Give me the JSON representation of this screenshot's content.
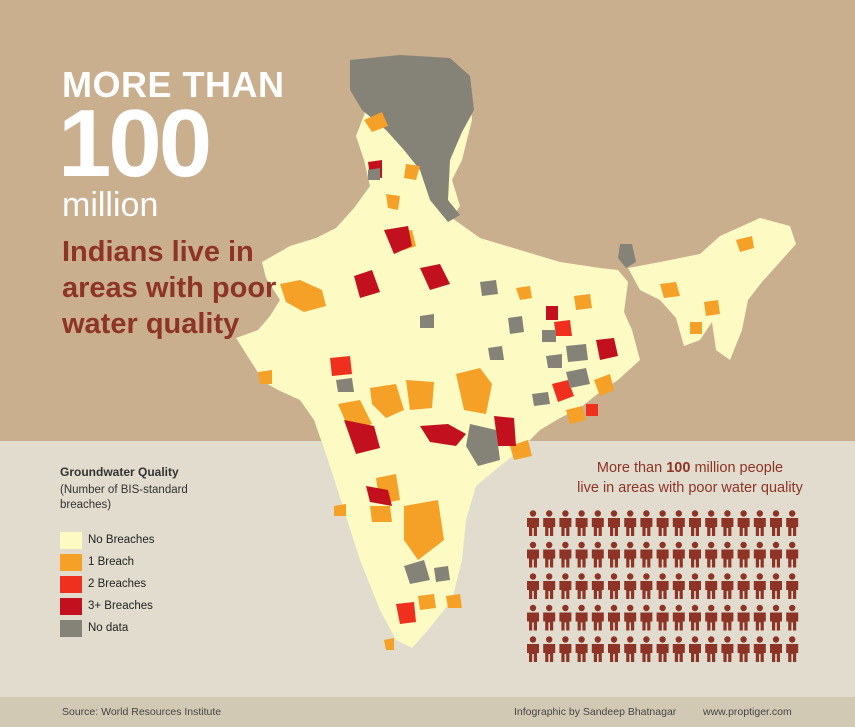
{
  "headline": {
    "prefix": "MORE THAN",
    "number": "100",
    "unit": "million",
    "subtitle": "Indians live in areas with poor water quality"
  },
  "legend": {
    "title": "Groundwater Quality",
    "subtitle": "(Number of BIS-standard breaches)",
    "items": [
      {
        "label": "No Breaches",
        "color": "#fdfac4"
      },
      {
        "label": "1 Breach",
        "color": "#f5a026"
      },
      {
        "label": "2 Breaches",
        "color": "#f0301e"
      },
      {
        "label": "3+ Breaches",
        "color": "#c2101e"
      },
      {
        "label": "No data",
        "color": "#858377"
      }
    ]
  },
  "stat": {
    "line1_prefix": "More than",
    "line1_number": "100",
    "line1_suffix": "million people",
    "line2": "live in areas with poor water quality"
  },
  "people_grid": {
    "rows": 5,
    "cols": 17,
    "color": "#8e3426"
  },
  "footer": {
    "source": "Source: World Resources Institute",
    "credit": "Infographic by Sandeep Bhatnagar",
    "website": "www.proptiger.com"
  },
  "colors": {
    "top_background": "#c9af8e",
    "bottom_background": "#e1dccd",
    "footer_background": "#d1c9b4",
    "map_fill": "#fdfac4",
    "headline_accent": "#8e3426"
  }
}
